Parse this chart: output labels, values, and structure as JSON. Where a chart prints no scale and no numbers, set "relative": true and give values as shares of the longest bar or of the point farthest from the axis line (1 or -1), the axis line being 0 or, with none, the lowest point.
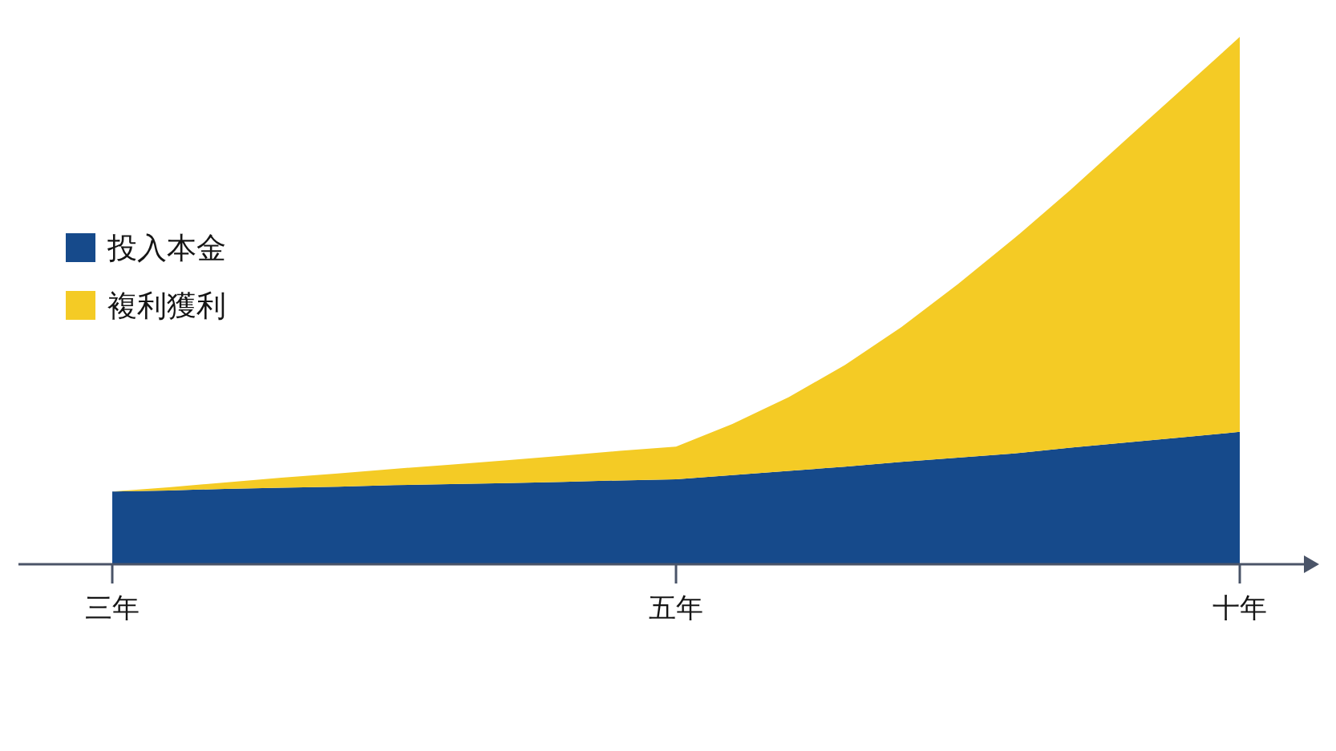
{
  "chart_data": {
    "type": "area",
    "stacked": true,
    "relative": true,
    "categories": [
      "三年",
      null,
      null,
      null,
      null,
      null,
      null,
      null,
      null,
      null,
      "五年",
      null,
      null,
      null,
      null,
      null,
      null,
      null,
      null,
      null,
      "十年"
    ],
    "series": [
      {
        "name": "投入本金",
        "color": "#164a8b",
        "values": [
          0.138,
          0.14,
          0.143,
          0.145,
          0.147,
          0.15,
          0.152,
          0.154,
          0.156,
          0.159,
          0.161,
          0.169,
          0.177,
          0.185,
          0.194,
          0.202,
          0.21,
          0.221,
          0.231,
          0.241,
          0.251
        ]
      },
      {
        "name": "複利獲利",
        "color": "#f4cb25",
        "values": [
          0,
          0.006,
          0.012,
          0.019,
          0.025,
          0.031,
          0.037,
          0.043,
          0.05,
          0.056,
          0.062,
          0.097,
          0.14,
          0.193,
          0.256,
          0.329,
          0.408,
          0.489,
          0.576,
          0.662,
          0.749
        ]
      }
    ],
    "legend": "left"
  }
}
